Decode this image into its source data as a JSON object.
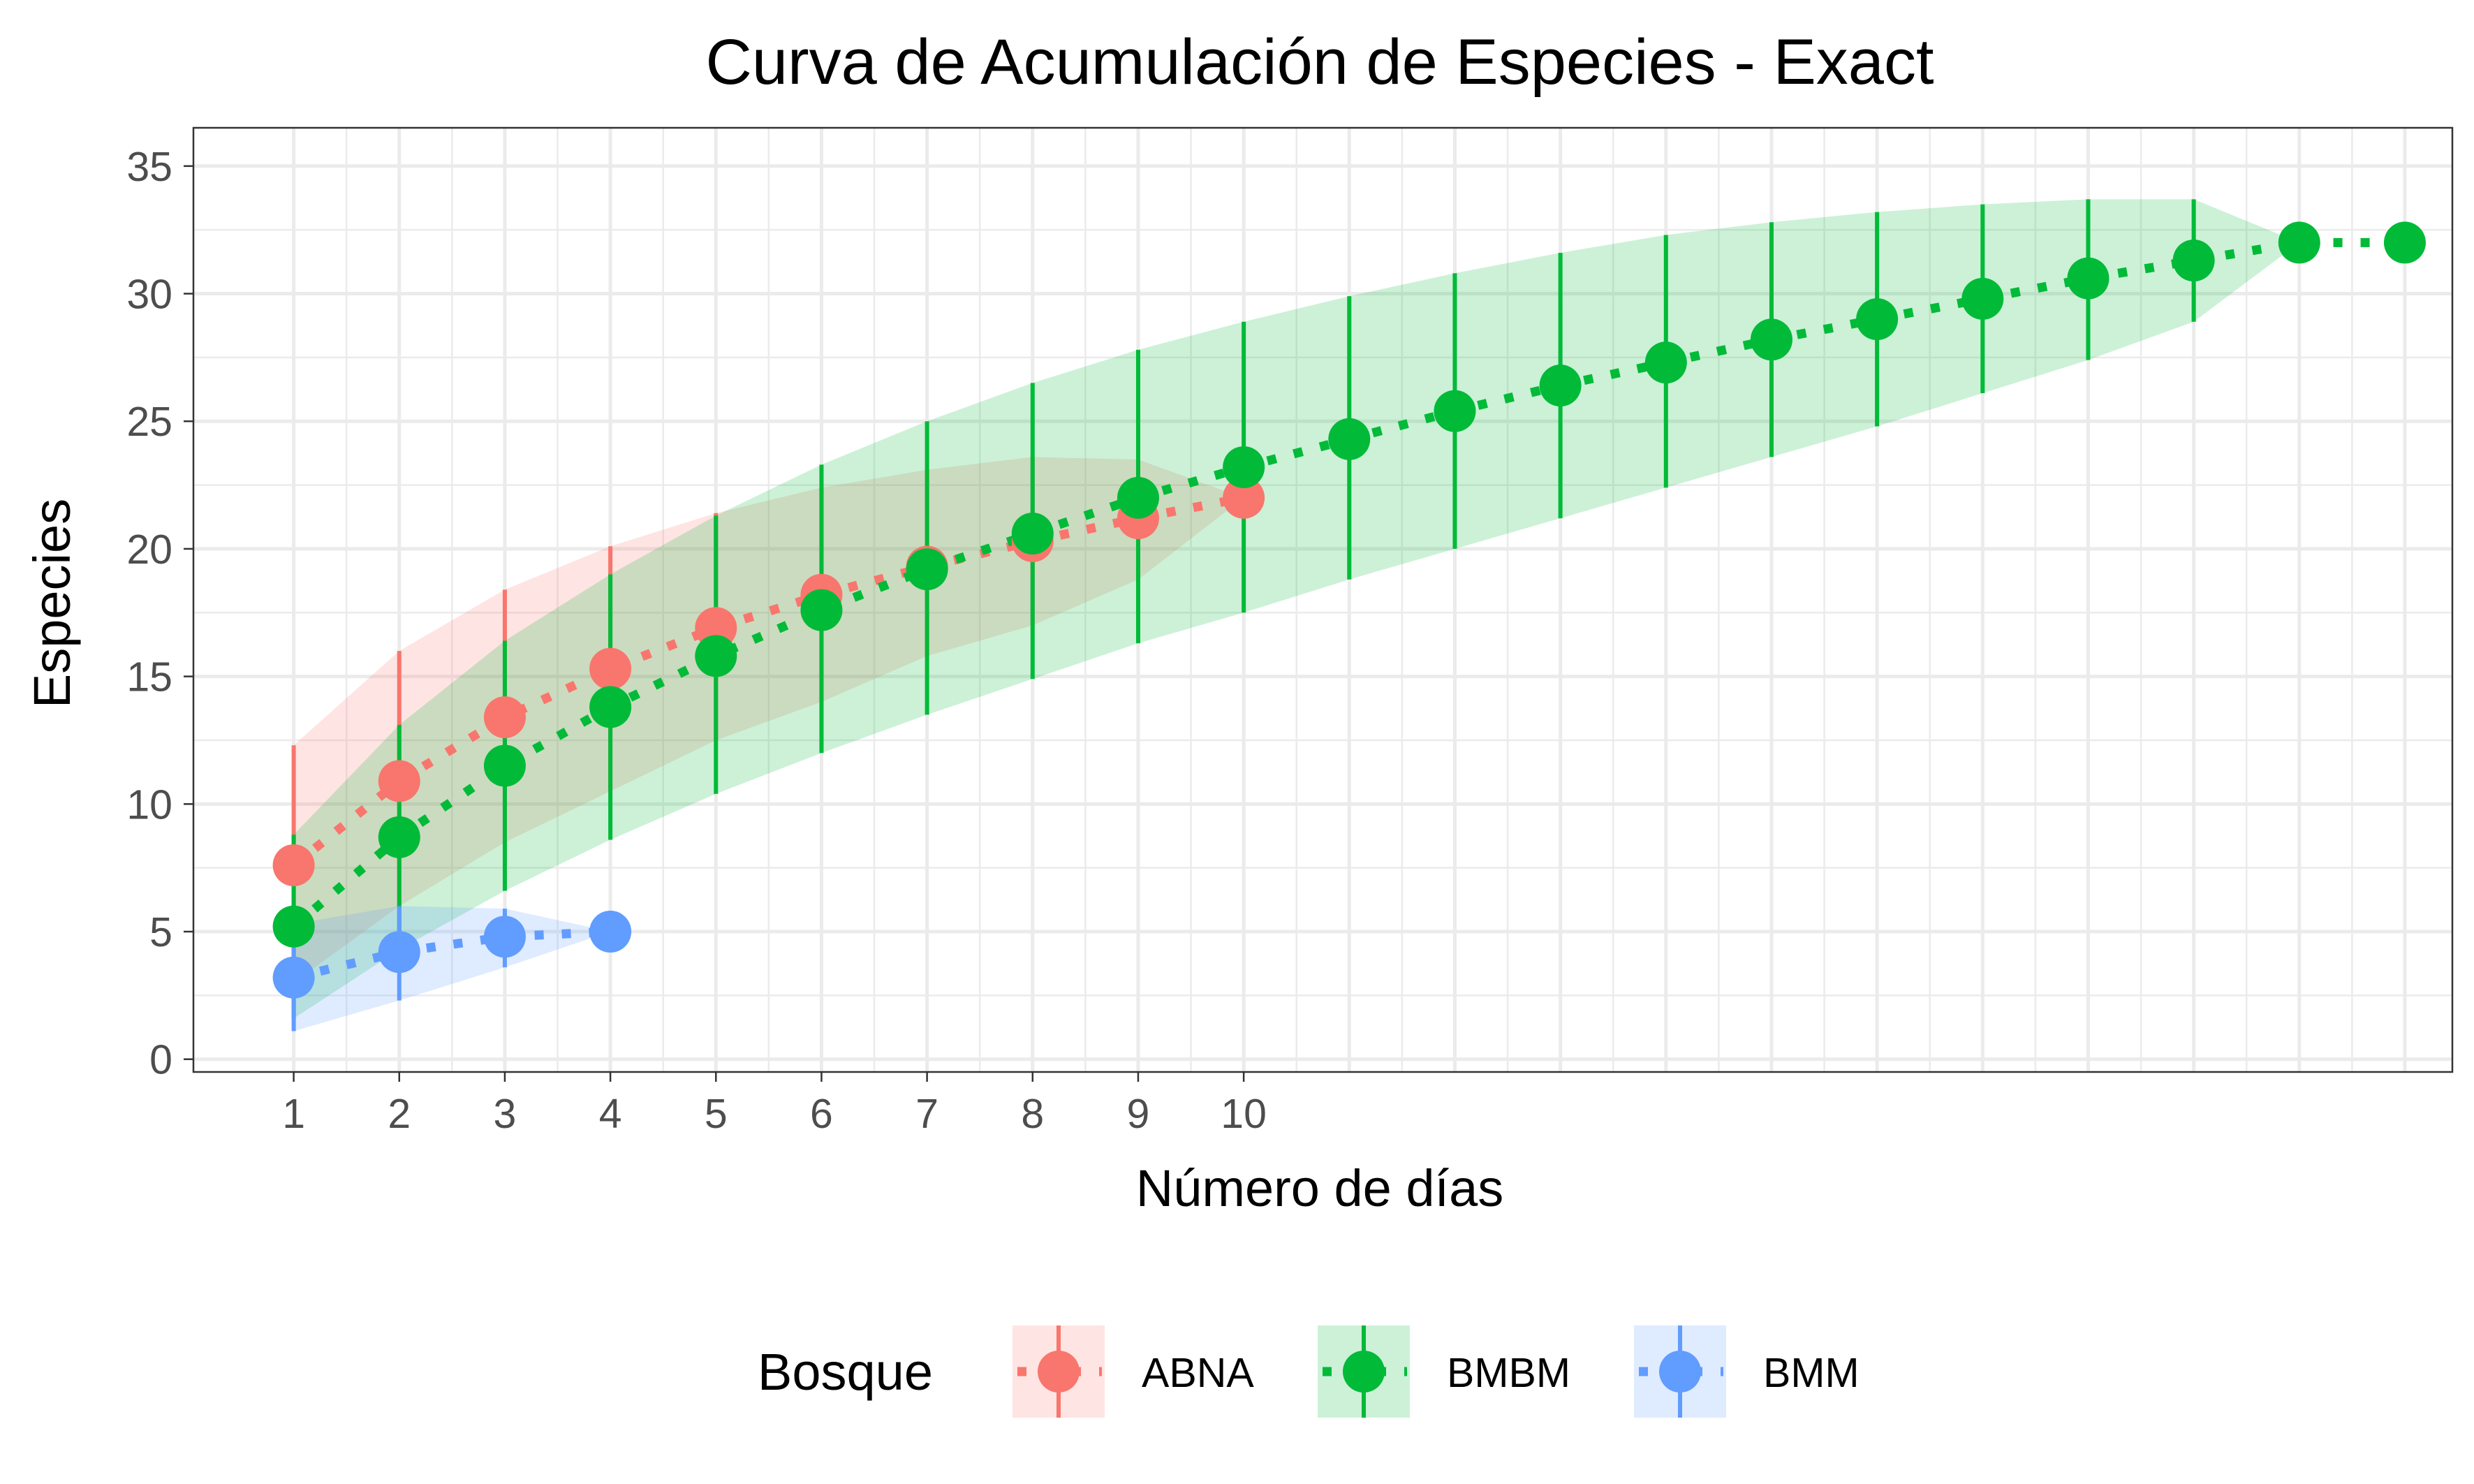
{
  "chart_data": {
    "type": "line",
    "title": "Curva de Acumulación de Especies - Exact",
    "xlabel": "Número de días",
    "ylabel": "Especies",
    "xlim": [
      0.05,
      21.45
    ],
    "ylim": [
      -0.5,
      36.5
    ],
    "x_ticks": [
      1,
      2,
      3,
      4,
      5,
      6,
      7,
      8,
      9,
      10
    ],
    "y_ticks": [
      0,
      5,
      10,
      15,
      20,
      25,
      30,
      35
    ],
    "grid": true,
    "legend_title": "Bosque",
    "legend_position": "bottom",
    "series": [
      {
        "name": "ABNA",
        "color": "#F8766D",
        "x": [
          1,
          2,
          3,
          4,
          5,
          6,
          7,
          8,
          9,
          10
        ],
        "y": [
          7.6,
          10.9,
          13.4,
          15.3,
          16.9,
          18.2,
          19.3,
          20.3,
          21.2,
          22.0
        ],
        "lower": [
          3.0,
          6.0,
          8.5,
          10.5,
          12.5,
          14.0,
          15.8,
          17.0,
          18.8,
          22.0
        ],
        "upper": [
          12.3,
          16.0,
          18.4,
          20.1,
          21.4,
          22.4,
          23.1,
          23.6,
          23.5,
          22.0
        ]
      },
      {
        "name": "BMBM",
        "color": "#00BA38",
        "x": [
          1,
          2,
          3,
          4,
          5,
          6,
          7,
          8,
          9,
          10,
          11,
          12,
          13,
          14,
          15,
          16,
          17,
          18,
          19,
          20,
          21
        ],
        "y": [
          5.2,
          8.7,
          11.5,
          13.8,
          15.8,
          17.6,
          19.2,
          20.6,
          22.0,
          23.2,
          24.3,
          25.4,
          26.4,
          27.3,
          28.2,
          29.0,
          29.8,
          30.6,
          31.3,
          32.0,
          32.0
        ],
        "lower": [
          1.6,
          4.3,
          6.6,
          8.6,
          10.4,
          12.0,
          13.5,
          14.9,
          16.3,
          17.5,
          18.8,
          20.0,
          21.2,
          22.4,
          23.6,
          24.8,
          26.1,
          27.4,
          28.9,
          32.0,
          32.0
        ],
        "upper": [
          8.8,
          13.1,
          16.4,
          19.0,
          21.3,
          23.3,
          25.0,
          26.5,
          27.8,
          28.9,
          29.9,
          30.8,
          31.6,
          32.3,
          32.8,
          33.2,
          33.5,
          33.7,
          33.7,
          32.0,
          32.0
        ]
      },
      {
        "name": "BMM",
        "color": "#619CFF",
        "x": [
          1,
          2,
          3,
          4
        ],
        "y": [
          3.2,
          4.2,
          4.8,
          5.0
        ],
        "lower": [
          1.1,
          2.3,
          3.6,
          5.0
        ],
        "upper": [
          5.3,
          6.0,
          5.9,
          5.0
        ]
      }
    ]
  }
}
